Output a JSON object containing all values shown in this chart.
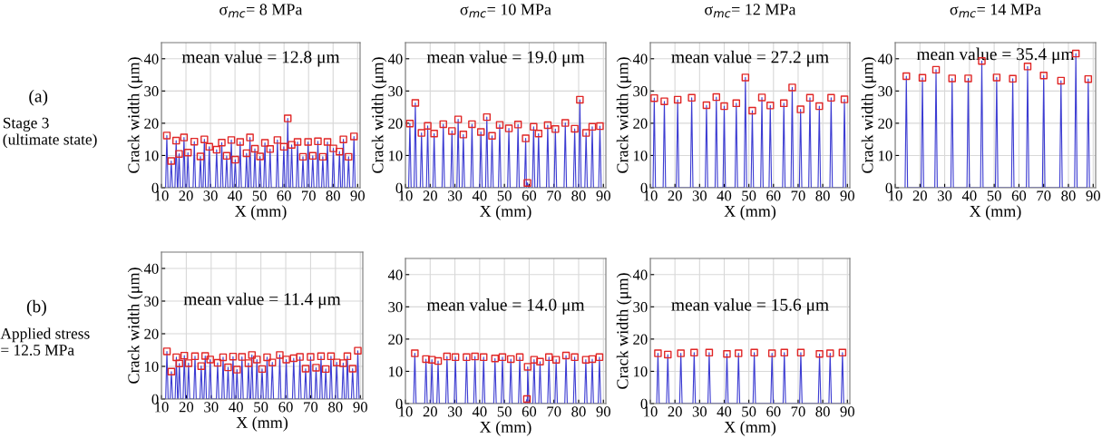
{
  "chart_data": [
    {
      "type": "line",
      "title": "σ$_{mc}$= 8 MPa",
      "xlabel": "X (mm)",
      "ylabel": "Crack width (μm)",
      "xlim": [
        10,
        91
      ],
      "ylim": [
        0,
        45
      ],
      "xticks": [
        10,
        20,
        30,
        40,
        50,
        60,
        70,
        80,
        90
      ],
      "yticks": [
        0,
        10,
        20,
        30,
        40
      ],
      "grid": true,
      "marker": "square",
      "annotations": [
        "mean value = 12.8 μm",
        "(a)",
        "Stage 3\n(ultimate state)"
      ],
      "series": [
        {
          "marker": "none",
          "color": "#3c3cd2",
          "x": [
            11.7,
            12.2,
            12.7,
            13.5,
            14.0,
            14.5,
            15.5,
            16.0,
            16.5,
            16.7,
            17.2,
            17.7,
            18.7,
            19.2,
            19.7,
            20.3,
            20.8,
            21.3,
            22.9,
            23.4,
            23.9,
            25.4,
            25.9,
            26.4,
            27.0,
            27.5,
            28.0,
            29.0,
            29.5,
            30.0,
            32.0,
            32.5,
            33.0,
            34.1,
            34.6,
            35.1,
            36.1,
            36.6,
            37.1,
            38.0,
            38.5,
            39.0,
            39.6,
            40.1,
            40.6,
            41.6,
            42.1,
            42.6,
            44.2,
            44.7,
            45.2,
            45.6,
            46.1,
            46.6,
            47.6,
            48.1,
            48.6,
            49.7,
            50.2,
            50.7,
            51.7,
            52.2,
            52.7,
            53.8,
            54.3,
            54.8,
            56.8,
            57.3,
            57.8,
            59.4,
            59.9,
            60.4,
            61.0,
            61.5,
            62.0,
            62.6,
            63.1,
            63.6,
            65.0,
            65.5,
            66.0,
            67.2,
            67.7,
            68.2,
            69.3,
            69.8,
            70.3,
            71.2,
            71.7,
            72.2,
            73.3,
            73.8,
            74.3,
            75.3,
            75.8,
            76.3,
            77.2,
            77.7,
            78.2,
            79.6,
            80.1,
            80.6,
            82.1,
            82.6,
            83.1,
            83.7,
            84.2,
            84.7,
            85.8,
            86.3,
            86.8,
            88.0,
            88.5,
            89.0
          ],
          "values": [
            0,
            16.2,
            0,
            0,
            8.3,
            0,
            0,
            14.6,
            0,
            0,
            10.5,
            0,
            0,
            15.6,
            0,
            0,
            10.9,
            0,
            0,
            14.3,
            0,
            0,
            9.7,
            0,
            0,
            15.0,
            0,
            0,
            12.7,
            0,
            0,
            11.8,
            0,
            0,
            14.0,
            0,
            0,
            9.9,
            0,
            0,
            14.8,
            0,
            0,
            8.7,
            0,
            0,
            14.2,
            0,
            0,
            10.7,
            0,
            0,
            15.6,
            0,
            0,
            12.1,
            0,
            0,
            9.7,
            0,
            0,
            13.9,
            0,
            0,
            12.0,
            0,
            0,
            14.8,
            0,
            0,
            12.7,
            0,
            0,
            21.5,
            0,
            0,
            13.3,
            0,
            0,
            14.2,
            0,
            0,
            9.6,
            0,
            0,
            14.2,
            0,
            0,
            9.9,
            0,
            0,
            14.4,
            0,
            0,
            9.6,
            0,
            0,
            14.2,
            0,
            0,
            12.2,
            0,
            0,
            11.2,
            0,
            0,
            15.0,
            0,
            0,
            9.6,
            0,
            0,
            15.9,
            0
          ]
        },
        {
          "type": "scatter",
          "color": "#e02626",
          "x": [
            12.2,
            14.0,
            16.0,
            17.2,
            19.2,
            20.8,
            23.4,
            25.9,
            27.5,
            29.5,
            32.5,
            34.6,
            36.6,
            38.5,
            40.1,
            42.1,
            44.7,
            46.1,
            48.1,
            50.2,
            52.2,
            54.3,
            57.3,
            59.9,
            61.5,
            63.1,
            65.5,
            67.7,
            69.8,
            71.7,
            73.8,
            75.8,
            77.7,
            80.1,
            82.6,
            84.2,
            86.3,
            88.5
          ],
          "values": [
            16.2,
            8.3,
            14.6,
            10.5,
            15.6,
            10.9,
            14.3,
            9.7,
            15.0,
            12.7,
            11.8,
            14.0,
            9.9,
            14.8,
            8.7,
            14.2,
            10.7,
            15.6,
            12.1,
            9.7,
            13.9,
            12.0,
            14.8,
            12.7,
            21.5,
            13.3,
            14.2,
            9.6,
            14.2,
            9.9,
            14.4,
            9.6,
            14.2,
            12.2,
            11.2,
            15.0,
            9.6,
            15.9
          ]
        }
      ]
    },
    {
      "type": "line",
      "title": "σ$_{mc}$= 10 MPa",
      "xlabel": "X (mm)",
      "ylabel": "Crack width (μm)",
      "xlim": [
        10,
        91
      ],
      "ylim": [
        0,
        45
      ],
      "xticks": [
        10,
        20,
        30,
        40,
        50,
        60,
        70,
        80,
        90
      ],
      "yticks": [
        0,
        10,
        20,
        30,
        40
      ],
      "grid": true,
      "marker": "square",
      "annotations": [
        "mean value = 19.0 μm"
      ],
      "series": [
        {
          "marker": "none",
          "color": "#3c3cd2",
          "x": [
            11.3,
            11.8,
            12.3,
            13.5,
            14.0,
            14.5,
            16.0,
            16.5,
            17.0,
            18.5,
            19.0,
            19.5,
            21.1,
            21.6,
            22.1,
            24.8,
            25.3,
            25.8,
            28.3,
            28.8,
            29.3,
            30.8,
            31.3,
            31.8,
            32.9,
            33.4,
            33.9,
            36.4,
            36.9,
            37.4,
            40.0,
            40.5,
            41.0,
            42.4,
            42.9,
            43.4,
            44.5,
            45.0,
            45.5,
            47.6,
            48.1,
            48.6,
            51.3,
            51.8,
            52.3,
            55.0,
            55.5,
            56.0,
            58.1,
            58.6,
            58.9,
            59.3,
            59.7,
            61.3,
            61.8,
            62.3,
            63.3,
            63.8,
            64.3,
            67.0,
            67.5,
            68.0,
            70.1,
            70.6,
            71.1,
            74.1,
            74.6,
            75.1,
            77.9,
            78.4,
            78.9,
            80.0,
            80.5,
            81.0,
            82.5,
            83.0,
            83.5,
            85.0,
            85.5,
            86.0,
            88.1,
            88.6,
            89.1
          ],
          "values": [
            0,
            19.9,
            0,
            0,
            26.3,
            0,
            0,
            17.0,
            0,
            0,
            19.2,
            0,
            0,
            16.8,
            0,
            0,
            19.7,
            0,
            0,
            17.6,
            0,
            0,
            21.2,
            0,
            0,
            16.5,
            0,
            0,
            19.7,
            0,
            0,
            17.3,
            0,
            0,
            21.9,
            0,
            0,
            16.1,
            0,
            0,
            19.5,
            0,
            0,
            18.4,
            0,
            0,
            19.6,
            0,
            0,
            15.3,
            0,
            1.5,
            0,
            0,
            18.9,
            0,
            0,
            16.8,
            0,
            0,
            19.4,
            0,
            0,
            18.2,
            0,
            0,
            20.1,
            0,
            0,
            18.3,
            0,
            0,
            27.3,
            0,
            0,
            17.0,
            0,
            0,
            18.9,
            0,
            0,
            19.1,
            0
          ]
        },
        {
          "type": "scatter",
          "color": "#e02626",
          "x": [
            11.8,
            14.0,
            16.5,
            19.0,
            21.6,
            25.3,
            28.8,
            31.3,
            33.4,
            36.9,
            40.5,
            42.9,
            45.0,
            48.1,
            51.8,
            55.5,
            58.6,
            59.3,
            61.8,
            63.8,
            67.5,
            70.6,
            74.6,
            78.4,
            80.5,
            83.0,
            85.5,
            88.6
          ],
          "values": [
            19.9,
            26.3,
            17.0,
            19.2,
            16.8,
            19.7,
            17.6,
            21.2,
            16.5,
            19.7,
            17.3,
            21.9,
            16.1,
            19.5,
            18.4,
            19.6,
            15.3,
            1.5,
            18.9,
            16.8,
            19.4,
            18.2,
            20.1,
            18.3,
            27.3,
            17.0,
            18.9,
            19.1
          ]
        }
      ]
    },
    {
      "type": "line",
      "title": "σ$_{mc}$= 12 MPa",
      "xlabel": "X (mm)",
      "ylabel": "Crack width (μm)",
      "xlim": [
        10,
        91
      ],
      "ylim": [
        0,
        45
      ],
      "xticks": [
        10,
        20,
        30,
        40,
        50,
        60,
        70,
        80,
        90
      ],
      "yticks": [
        0,
        10,
        20,
        30,
        40
      ],
      "grid": true,
      "marker": "square",
      "annotations": [
        "mean value = 27.2 μm"
      ],
      "series": [
        {
          "marker": "none",
          "color": "#3c3cd2",
          "x": [
            11.1,
            11.6,
            12.1,
            15.2,
            15.7,
            16.2,
            20.6,
            21.1,
            21.6,
            26.3,
            26.8,
            27.3,
            32.3,
            32.8,
            33.3,
            36.3,
            36.8,
            37.3,
            39.5,
            40.0,
            40.5,
            44.4,
            44.9,
            45.4,
            48.1,
            48.6,
            49.1,
            50.9,
            51.4,
            51.9,
            54.8,
            55.3,
            55.8,
            58.2,
            58.7,
            59.2,
            63.7,
            64.2,
            64.7,
            67.1,
            67.6,
            68.1,
            70.5,
            71.0,
            71.5,
            74.3,
            74.8,
            75.3,
            78.1,
            78.6,
            79.1,
            82.9,
            83.4,
            83.9,
            88.3,
            88.8,
            89.3
          ],
          "values": [
            0,
            27.8,
            0,
            0,
            26.8,
            0,
            0,
            27.3,
            0,
            0,
            27.9,
            0,
            0,
            25.6,
            0,
            0,
            28.1,
            0,
            0,
            25.3,
            0,
            0,
            26.2,
            0,
            0,
            34.2,
            0,
            0,
            23.9,
            0,
            0,
            28.0,
            0,
            0,
            25.5,
            0,
            0,
            26.2,
            0,
            0,
            31.1,
            0,
            0,
            24.3,
            0,
            0,
            27.9,
            0,
            0,
            25.3,
            0,
            0,
            27.9,
            0,
            0,
            27.4,
            0
          ]
        },
        {
          "type": "scatter",
          "color": "#e02626",
          "x": [
            11.6,
            15.7,
            21.1,
            26.8,
            32.8,
            36.8,
            40.0,
            44.9,
            48.6,
            51.4,
            55.3,
            58.7,
            64.2,
            67.6,
            71.0,
            74.8,
            78.6,
            83.4,
            88.8
          ],
          "values": [
            27.8,
            26.8,
            27.3,
            27.9,
            25.6,
            28.1,
            25.3,
            26.2,
            34.2,
            23.9,
            28.0,
            25.5,
            26.2,
            31.1,
            24.3,
            27.9,
            25.3,
            27.9,
            27.4
          ]
        }
      ]
    },
    {
      "type": "line",
      "title": "σ$_{mc}$= 14 MPa",
      "xlabel": "X (mm)",
      "ylabel": "Crack width (μm)",
      "xlim": [
        10,
        91
      ],
      "ylim": [
        0,
        45
      ],
      "xticks": [
        10,
        20,
        30,
        40,
        50,
        60,
        70,
        80,
        90
      ],
      "yticks": [
        0,
        10,
        20,
        30,
        40
      ],
      "grid": true,
      "marker": "square",
      "annotations": [
        "mean value = 35.4 μm"
      ],
      "series": [
        {
          "marker": "none",
          "color": "#3c3cd2",
          "x": [
            14.0,
            14.5,
            15.0,
            20.5,
            21.0,
            21.5,
            26.0,
            26.5,
            27.0,
            32.5,
            33.0,
            33.5,
            39.0,
            39.5,
            40.0,
            44.5,
            45.0,
            45.5,
            50.5,
            51.0,
            51.5,
            57.0,
            57.5,
            58.0,
            63.0,
            63.5,
            64.0,
            69.5,
            70.0,
            70.5,
            76.5,
            77.0,
            77.5,
            82.5,
            83.0,
            83.5,
            87.5,
            88.0,
            88.5
          ],
          "values": [
            0,
            34.6,
            0,
            0,
            34.1,
            0,
            0,
            36.6,
            0,
            0,
            33.9,
            0,
            0,
            33.9,
            0,
            0,
            39.3,
            0,
            0,
            34.2,
            0,
            0,
            33.8,
            0,
            0,
            37.6,
            0,
            0,
            34.8,
            0,
            0,
            33.2,
            0,
            0,
            41.6,
            0,
            0,
            33.7,
            0
          ]
        },
        {
          "type": "scatter",
          "color": "#e02626",
          "x": [
            14.5,
            21.0,
            26.5,
            33.0,
            39.5,
            45.0,
            51.0,
            57.5,
            63.5,
            70.0,
            77.0,
            83.0,
            88.0
          ],
          "values": [
            34.6,
            34.1,
            36.6,
            33.9,
            33.9,
            39.3,
            34.2,
            33.8,
            37.6,
            34.8,
            33.2,
            41.6,
            33.7
          ]
        }
      ]
    },
    {
      "type": "line",
      "xlabel": "X (mm)",
      "ylabel": "Crack width (μm)",
      "xlim": [
        10,
        91
      ],
      "ylim": [
        0,
        45
      ],
      "xticks": [
        10,
        20,
        30,
        40,
        50,
        60,
        70,
        80,
        90
      ],
      "yticks": [
        0,
        10,
        20,
        30,
        40
      ],
      "grid": true,
      "marker": "square",
      "annotations": [
        "mean value = 11.4 μm",
        "(b)",
        "Applied stress\n= 12.5 MPa"
      ],
      "series": [
        {
          "marker": "none",
          "color": "#3c3cd2",
          "x": [
            11.7,
            12.2,
            12.7,
            13.5,
            14.0,
            14.5,
            15.5,
            16.0,
            16.5,
            16.7,
            17.2,
            17.7,
            18.7,
            19.2,
            19.7,
            20.4,
            20.9,
            21.4,
            23.0,
            23.5,
            24.0,
            25.5,
            26.0,
            26.5,
            27.1,
            27.6,
            28.1,
            29.1,
            29.6,
            30.1,
            32.1,
            32.6,
            33.1,
            34.3,
            34.8,
            35.3,
            36.3,
            36.8,
            37.3,
            38.3,
            38.8,
            39.3,
            39.9,
            40.4,
            40.9,
            41.9,
            42.4,
            42.9,
            44.5,
            45.0,
            45.5,
            45.9,
            46.4,
            46.9,
            47.9,
            48.4,
            48.9,
            50.0,
            50.5,
            51.0,
            52.0,
            52.5,
            53.0,
            54.1,
            54.6,
            55.1,
            57.1,
            57.6,
            58.1,
            59.7,
            60.2,
            60.7,
            62.7,
            63.2,
            63.7,
            65.2,
            65.7,
            66.2,
            67.5,
            68.0,
            68.5,
            69.5,
            70.0,
            70.5,
            71.7,
            72.2,
            72.7,
            73.7,
            74.2,
            74.7,
            75.6,
            76.1,
            76.6,
            77.7,
            78.2,
            78.7,
            80.0,
            80.5,
            81.0,
            82.6,
            83.1,
            83.6,
            84.3,
            84.8,
            85.3,
            86.4,
            86.9,
            87.4,
            88.5,
            89.0,
            89.5
          ],
          "values": [
            0,
            14.6,
            0,
            0,
            8.4,
            0,
            0,
            12.8,
            0,
            0,
            10.9,
            0,
            0,
            13.3,
            0,
            0,
            11.0,
            0,
            0,
            13.1,
            0,
            0,
            10.1,
            0,
            0,
            13.2,
            0,
            0,
            12.1,
            0,
            0,
            11.1,
            0,
            0,
            12.8,
            0,
            0,
            9.7,
            0,
            0,
            13.0,
            0,
            0,
            9.0,
            0,
            0,
            12.9,
            0,
            0,
            11.0,
            0,
            0,
            13.5,
            0,
            0,
            12.1,
            0,
            0,
            9.2,
            0,
            0,
            12.8,
            0,
            0,
            11.2,
            0,
            0,
            13.5,
            0,
            0,
            12.1,
            0,
            0,
            12.5,
            0,
            0,
            12.9,
            0,
            0,
            9.3,
            0,
            0,
            12.9,
            0,
            0,
            9.6,
            0,
            0,
            13.1,
            0,
            0,
            9.2,
            0,
            0,
            13.1,
            0,
            0,
            11.2,
            0,
            0,
            11.0,
            0,
            0,
            13.1,
            0,
            0,
            9.3,
            0,
            0,
            14.8,
            0
          ]
        },
        {
          "type": "scatter",
          "color": "#e02626",
          "x": [
            12.2,
            14.0,
            16.0,
            17.2,
            19.2,
            20.9,
            23.5,
            26.0,
            27.6,
            29.6,
            32.6,
            34.8,
            36.8,
            38.8,
            40.4,
            42.4,
            45.0,
            46.4,
            48.4,
            50.5,
            52.5,
            54.6,
            57.6,
            60.2,
            63.2,
            65.7,
            68.0,
            70.0,
            72.2,
            74.2,
            76.1,
            78.2,
            80.5,
            83.1,
            84.8,
            86.9,
            89.0
          ],
          "values": [
            14.6,
            8.4,
            12.8,
            10.9,
            13.3,
            11.0,
            13.1,
            10.1,
            13.2,
            12.1,
            11.1,
            12.8,
            9.7,
            13.0,
            9.0,
            12.9,
            11.0,
            13.5,
            12.1,
            9.2,
            12.8,
            11.2,
            13.5,
            12.1,
            12.5,
            12.9,
            9.3,
            12.9,
            9.6,
            13.1,
            9.2,
            13.1,
            11.2,
            11.0,
            13.1,
            9.3,
            14.8
          ]
        }
      ]
    },
    {
      "type": "line",
      "xlabel": "X (mm)",
      "xlim": [
        10,
        91
      ],
      "ylim": [
        0,
        45
      ],
      "xticks": [
        10,
        20,
        30,
        40,
        50,
        60,
        70,
        80,
        90
      ],
      "yticks": [
        0,
        10,
        20,
        30,
        40
      ],
      "grid": true,
      "marker": "square",
      "annotations": [
        "mean value = 14.0 μm"
      ],
      "series": [
        {
          "marker": "none",
          "color": "#3c3cd2",
          "x": [
            13.3,
            13.8,
            14.3,
            17.8,
            18.3,
            18.8,
            20.2,
            20.7,
            21.2,
            22.7,
            23.2,
            23.7,
            26.3,
            26.8,
            27.3,
            29.7,
            30.2,
            30.7,
            34.2,
            34.7,
            35.2,
            37.6,
            38.1,
            38.6,
            41.1,
            41.6,
            42.1,
            45.7,
            46.2,
            46.7,
            48.7,
            49.2,
            49.7,
            52.1,
            52.6,
            53.1,
            55.7,
            56.2,
            56.7,
            58.6,
            59.1,
            59.25,
            59.4,
            59.9,
            61.5,
            62.0,
            62.5,
            63.9,
            64.4,
            64.9,
            67.5,
            68.0,
            68.5,
            70.4,
            70.9,
            71.4,
            74.4,
            74.9,
            75.4,
            77.9,
            78.4,
            78.9,
            82.4,
            82.9,
            83.4,
            85.0,
            85.5,
            86.0,
            87.9,
            88.4,
            88.9
          ],
          "values": [
            0,
            15.6,
            0,
            0,
            13.8,
            0,
            0,
            13.6,
            0,
            0,
            13.2,
            0,
            0,
            14.6,
            0,
            0,
            14.4,
            0,
            0,
            14.4,
            0,
            0,
            14.6,
            0,
            0,
            14.4,
            0,
            0,
            14.0,
            0,
            0,
            14.4,
            0,
            0,
            13.8,
            0,
            0,
            14.4,
            0,
            0,
            1.4,
            0,
            11.4,
            0,
            0,
            13.6,
            0,
            0,
            13.0,
            0,
            0,
            14.4,
            0,
            0,
            13.6,
            0,
            0,
            14.9,
            0,
            0,
            14.4,
            0,
            0,
            13.6,
            0,
            0,
            13.8,
            0,
            0,
            14.4,
            0
          ]
        },
        {
          "type": "scatter",
          "color": "#e02626",
          "x": [
            13.8,
            18.3,
            20.7,
            23.2,
            26.8,
            30.2,
            34.7,
            38.1,
            41.6,
            46.2,
            49.2,
            52.6,
            56.2,
            59.1,
            59.4,
            62.0,
            64.4,
            68.0,
            70.9,
            74.9,
            78.4,
            82.9,
            85.5,
            88.4
          ],
          "values": [
            15.6,
            13.8,
            13.6,
            13.2,
            14.6,
            14.4,
            14.4,
            14.6,
            14.4,
            14.0,
            14.4,
            13.8,
            14.4,
            1.4,
            11.4,
            13.6,
            13.0,
            14.4,
            13.6,
            14.9,
            14.4,
            13.6,
            13.8,
            14.4
          ]
        }
      ]
    },
    {
      "type": "line",
      "xlabel": "X (mm)",
      "ylabel": "Crack width (μm)",
      "xlim": [
        10,
        91
      ],
      "ylim": [
        0,
        45
      ],
      "xticks": [
        10,
        20,
        30,
        40,
        50,
        60,
        70,
        80,
        90
      ],
      "yticks": [
        0,
        10,
        20,
        30,
        40
      ],
      "grid": true,
      "marker": "square",
      "annotations": [
        "mean value = 15.6 μm"
      ],
      "series": [
        {
          "marker": "none",
          "color": "#3c3cd2",
          "x": [
            12.6,
            13.1,
            13.6,
            16.6,
            17.1,
            17.6,
            21.9,
            22.4,
            22.9,
            27.3,
            27.8,
            28.3,
            33.4,
            33.9,
            34.4,
            40.6,
            41.1,
            41.6,
            45.3,
            45.8,
            46.3,
            51.7,
            52.2,
            52.7,
            58.9,
            59.4,
            59.9,
            63.9,
            64.4,
            64.9,
            70.6,
            71.1,
            71.6,
            78.2,
            78.7,
            79.2,
            82.5,
            83.0,
            83.5,
            87.5,
            88.0,
            88.5
          ],
          "values": [
            0,
            15.6,
            0,
            0,
            15.2,
            0,
            0,
            15.6,
            0,
            0,
            15.8,
            0,
            0,
            15.8,
            0,
            0,
            15.4,
            0,
            0,
            15.6,
            0,
            0,
            15.8,
            0,
            0,
            15.6,
            0,
            0,
            15.8,
            0,
            0,
            15.8,
            0,
            0,
            15.4,
            0,
            0,
            15.6,
            0,
            0,
            15.8,
            0
          ]
        },
        {
          "type": "scatter",
          "color": "#e02626",
          "x": [
            13.1,
            17.1,
            22.4,
            27.8,
            33.9,
            41.1,
            45.8,
            52.2,
            59.4,
            64.4,
            71.1,
            78.7,
            83.0,
            88.0
          ],
          "values": [
            15.6,
            15.2,
            15.6,
            15.8,
            15.8,
            15.4,
            15.6,
            15.8,
            15.6,
            15.8,
            15.8,
            15.4,
            15.6,
            15.8
          ]
        }
      ]
    }
  ]
}
